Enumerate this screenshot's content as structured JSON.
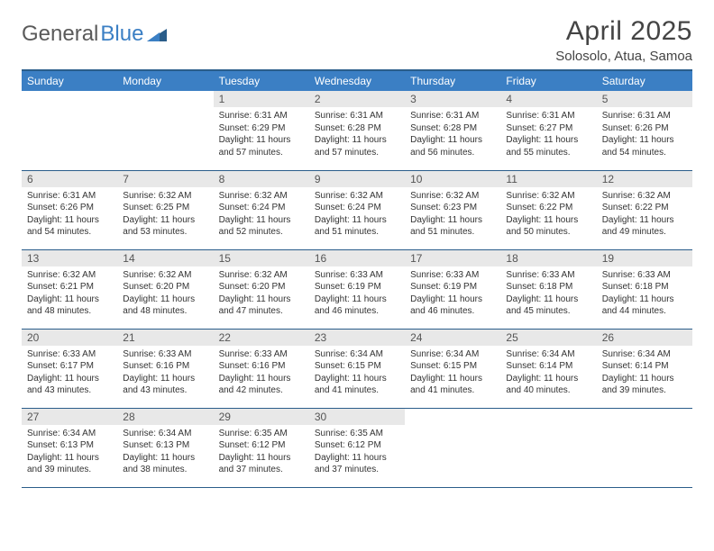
{
  "brand": {
    "part1": "General",
    "part2": "Blue"
  },
  "title": "April 2025",
  "location": "Solosolo, Atua, Samoa",
  "colors": {
    "header_bg": "#3b7fc4",
    "header_text": "#ffffff",
    "border": "#2a5d8a",
    "daynum_bg": "#e8e8e8",
    "body_text": "#333333"
  },
  "day_headers": [
    "Sunday",
    "Monday",
    "Tuesday",
    "Wednesday",
    "Thursday",
    "Friday",
    "Saturday"
  ],
  "weeks": [
    [
      null,
      null,
      {
        "n": "1",
        "sr": "6:31 AM",
        "ss": "6:29 PM",
        "dl": "11 hours and 57 minutes."
      },
      {
        "n": "2",
        "sr": "6:31 AM",
        "ss": "6:28 PM",
        "dl": "11 hours and 57 minutes."
      },
      {
        "n": "3",
        "sr": "6:31 AM",
        "ss": "6:28 PM",
        "dl": "11 hours and 56 minutes."
      },
      {
        "n": "4",
        "sr": "6:31 AM",
        "ss": "6:27 PM",
        "dl": "11 hours and 55 minutes."
      },
      {
        "n": "5",
        "sr": "6:31 AM",
        "ss": "6:26 PM",
        "dl": "11 hours and 54 minutes."
      }
    ],
    [
      {
        "n": "6",
        "sr": "6:31 AM",
        "ss": "6:26 PM",
        "dl": "11 hours and 54 minutes."
      },
      {
        "n": "7",
        "sr": "6:32 AM",
        "ss": "6:25 PM",
        "dl": "11 hours and 53 minutes."
      },
      {
        "n": "8",
        "sr": "6:32 AM",
        "ss": "6:24 PM",
        "dl": "11 hours and 52 minutes."
      },
      {
        "n": "9",
        "sr": "6:32 AM",
        "ss": "6:24 PM",
        "dl": "11 hours and 51 minutes."
      },
      {
        "n": "10",
        "sr": "6:32 AM",
        "ss": "6:23 PM",
        "dl": "11 hours and 51 minutes."
      },
      {
        "n": "11",
        "sr": "6:32 AM",
        "ss": "6:22 PM",
        "dl": "11 hours and 50 minutes."
      },
      {
        "n": "12",
        "sr": "6:32 AM",
        "ss": "6:22 PM",
        "dl": "11 hours and 49 minutes."
      }
    ],
    [
      {
        "n": "13",
        "sr": "6:32 AM",
        "ss": "6:21 PM",
        "dl": "11 hours and 48 minutes."
      },
      {
        "n": "14",
        "sr": "6:32 AM",
        "ss": "6:20 PM",
        "dl": "11 hours and 48 minutes."
      },
      {
        "n": "15",
        "sr": "6:32 AM",
        "ss": "6:20 PM",
        "dl": "11 hours and 47 minutes."
      },
      {
        "n": "16",
        "sr": "6:33 AM",
        "ss": "6:19 PM",
        "dl": "11 hours and 46 minutes."
      },
      {
        "n": "17",
        "sr": "6:33 AM",
        "ss": "6:19 PM",
        "dl": "11 hours and 46 minutes."
      },
      {
        "n": "18",
        "sr": "6:33 AM",
        "ss": "6:18 PM",
        "dl": "11 hours and 45 minutes."
      },
      {
        "n": "19",
        "sr": "6:33 AM",
        "ss": "6:18 PM",
        "dl": "11 hours and 44 minutes."
      }
    ],
    [
      {
        "n": "20",
        "sr": "6:33 AM",
        "ss": "6:17 PM",
        "dl": "11 hours and 43 minutes."
      },
      {
        "n": "21",
        "sr": "6:33 AM",
        "ss": "6:16 PM",
        "dl": "11 hours and 43 minutes."
      },
      {
        "n": "22",
        "sr": "6:33 AM",
        "ss": "6:16 PM",
        "dl": "11 hours and 42 minutes."
      },
      {
        "n": "23",
        "sr": "6:34 AM",
        "ss": "6:15 PM",
        "dl": "11 hours and 41 minutes."
      },
      {
        "n": "24",
        "sr": "6:34 AM",
        "ss": "6:15 PM",
        "dl": "11 hours and 41 minutes."
      },
      {
        "n": "25",
        "sr": "6:34 AM",
        "ss": "6:14 PM",
        "dl": "11 hours and 40 minutes."
      },
      {
        "n": "26",
        "sr": "6:34 AM",
        "ss": "6:14 PM",
        "dl": "11 hours and 39 minutes."
      }
    ],
    [
      {
        "n": "27",
        "sr": "6:34 AM",
        "ss": "6:13 PM",
        "dl": "11 hours and 39 minutes."
      },
      {
        "n": "28",
        "sr": "6:34 AM",
        "ss": "6:13 PM",
        "dl": "11 hours and 38 minutes."
      },
      {
        "n": "29",
        "sr": "6:35 AM",
        "ss": "6:12 PM",
        "dl": "11 hours and 37 minutes."
      },
      {
        "n": "30",
        "sr": "6:35 AM",
        "ss": "6:12 PM",
        "dl": "11 hours and 37 minutes."
      },
      null,
      null,
      null
    ]
  ],
  "labels": {
    "sunrise": "Sunrise:",
    "sunset": "Sunset:",
    "daylight": "Daylight:"
  }
}
